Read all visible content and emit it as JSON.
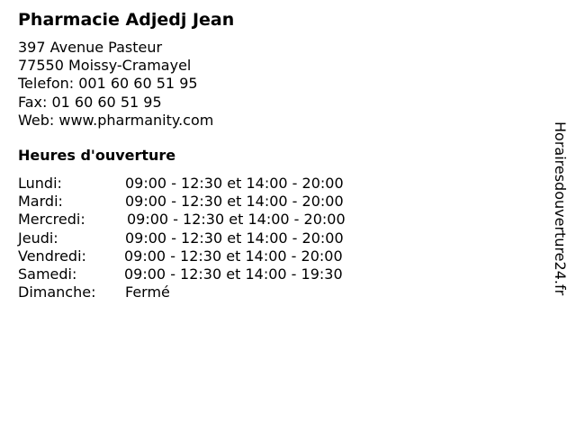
{
  "title": "Pharmacie Adjedj Jean",
  "address": [
    "397 Avenue Pasteur",
    "77550 Moissy-Cramayel",
    "Telefon: 001 60 60 51 95",
    "Fax: 01 60 60 51 95",
    "Web: www.pharmanity.com"
  ],
  "hours_heading": "Heures d'ouverture",
  "hours": [
    {
      "day": "Lundi:",
      "time": "09:00 - 12:30 et 14:00 - 20:00"
    },
    {
      "day": "Mardi:",
      "time": "09:00 - 12:30 et 14:00 - 20:00"
    },
    {
      "day": "Mercredi:",
      "time": "09:00 - 12:30 et 14:00 - 20:00"
    },
    {
      "day": "Jeudi:",
      "time": "09:00 - 12:30 et 14:00 - 20:00"
    },
    {
      "day": "Vendredi:",
      "time": "09:00 - 12:30 et 14:00 - 20:00"
    },
    {
      "day": "Samedi:",
      "time": "09:00 - 12:30 et 14:00 - 19:30"
    },
    {
      "day": "Dimanche:",
      "time": "Fermé"
    }
  ],
  "side_brand": "Horairesdouverture24.fr"
}
